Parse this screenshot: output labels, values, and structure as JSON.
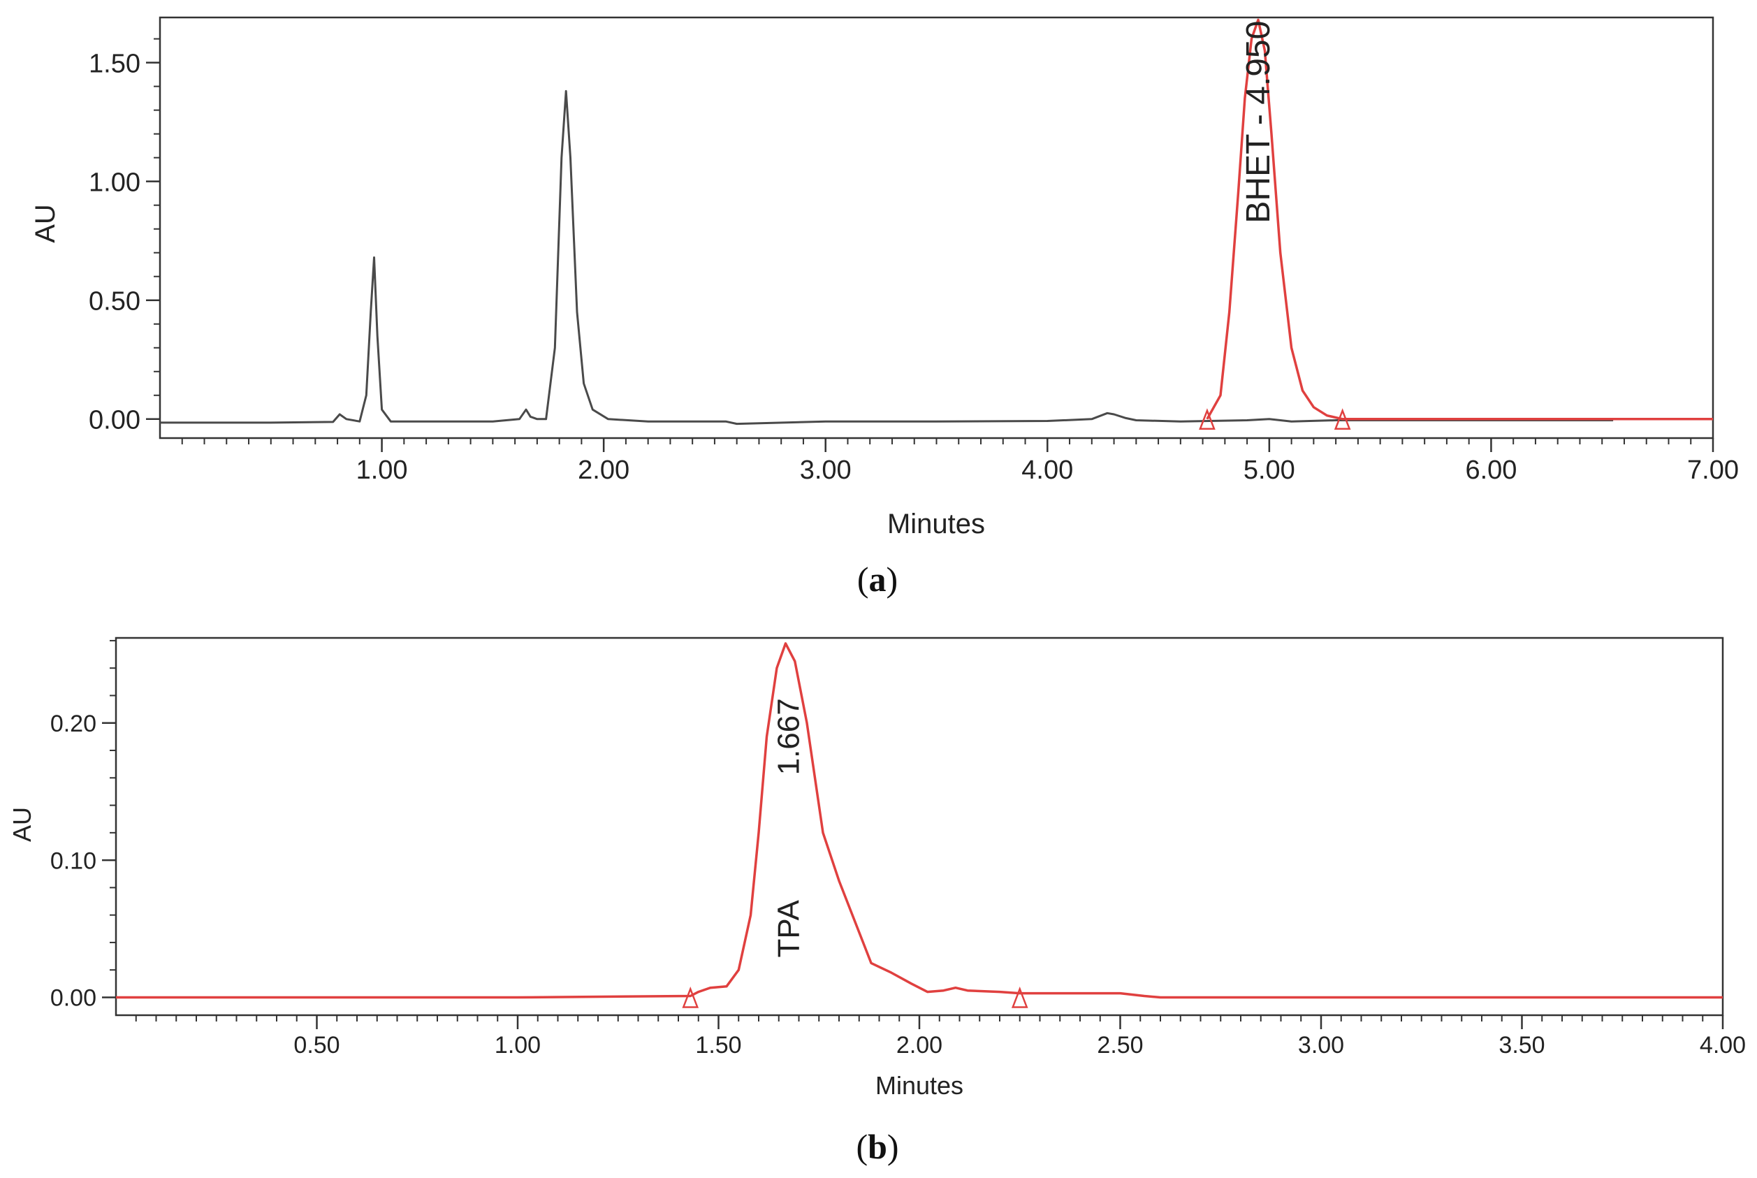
{
  "colors": {
    "trace_black": "#4a4a4a",
    "trace_red": "#e0403f",
    "axis": "#333333",
    "text": "#222222"
  },
  "chart_data": [
    {
      "type": "line",
      "panel_label": "a",
      "xlabel": "Minutes",
      "ylabel": "AU",
      "xlim": [
        0,
        7
      ],
      "ylim": [
        -0.08,
        1.69
      ],
      "x_ticks": [
        1,
        2,
        3,
        4,
        5,
        6,
        7
      ],
      "x_tick_labels": [
        "1.00",
        "2.00",
        "3.00",
        "4.00",
        "5.00",
        "6.00",
        "7.00"
      ],
      "y_ticks": [
        0,
        0.5,
        1.0,
        1.5
      ],
      "y_tick_labels": [
        "0.00",
        "0.50",
        "1.00",
        "1.50"
      ],
      "grid": false,
      "series": [
        {
          "color": "black",
          "x": [
            0.0,
            0.5,
            0.78,
            0.81,
            0.84,
            0.9,
            0.93,
            0.95,
            0.965,
            0.98,
            1.0,
            1.04,
            1.2,
            1.5,
            1.62,
            1.65,
            1.67,
            1.7,
            1.74,
            1.78,
            1.81,
            1.83,
            1.85,
            1.88,
            1.91,
            1.95,
            2.02,
            2.2,
            2.55,
            2.6,
            3.0,
            3.5,
            4.0,
            4.2,
            4.27,
            4.3,
            4.35,
            4.4,
            4.6,
            4.9,
            5.0,
            5.1,
            5.3,
            6.0,
            6.55
          ],
          "y": [
            -0.015,
            -0.015,
            -0.012,
            0.02,
            0.0,
            -0.01,
            0.1,
            0.45,
            0.68,
            0.35,
            0.04,
            -0.01,
            -0.01,
            -0.01,
            0.0,
            0.04,
            0.01,
            0.0,
            0.0,
            0.3,
            1.1,
            1.38,
            1.1,
            0.45,
            0.15,
            0.04,
            0.0,
            -0.01,
            -0.01,
            -0.02,
            -0.01,
            -0.01,
            -0.008,
            0.0,
            0.025,
            0.02,
            0.005,
            -0.005,
            -0.01,
            -0.005,
            0.0,
            -0.01,
            -0.005,
            -0.005,
            -0.005
          ]
        },
        {
          "color": "red",
          "x": [
            4.72,
            4.78,
            4.82,
            4.86,
            4.89,
            4.92,
            4.95,
            4.98,
            5.01,
            5.05,
            5.1,
            5.15,
            5.2,
            5.26,
            5.33,
            5.5,
            6.0,
            7.0
          ],
          "y": [
            0.0,
            0.1,
            0.45,
            0.95,
            1.35,
            1.6,
            1.68,
            1.55,
            1.2,
            0.7,
            0.3,
            0.12,
            0.05,
            0.015,
            0.0,
            0.0,
            0.0,
            0.0
          ]
        }
      ],
      "integration_markers_x": [
        4.72,
        5.33
      ],
      "peak_labels": [
        {
          "text": "BHET - 4.950",
          "x": 5.0,
          "y": 1.25
        }
      ]
    },
    {
      "type": "line",
      "panel_label": "b",
      "xlabel": "Minutes",
      "ylabel": "AU",
      "xlim": [
        0,
        4
      ],
      "ylim": [
        -0.013,
        0.262
      ],
      "x_ticks": [
        0.5,
        1.0,
        1.5,
        2.0,
        2.5,
        3.0,
        3.5,
        4.0
      ],
      "x_tick_labels": [
        "0.50",
        "1.00",
        "1.50",
        "2.00",
        "2.50",
        "3.00",
        "3.50",
        "4.00"
      ],
      "y_ticks": [
        0,
        0.1,
        0.2
      ],
      "y_tick_labels": [
        "0.00",
        "0.10",
        "0.20"
      ],
      "grid": false,
      "series": [
        {
          "color": "red",
          "x": [
            0.0,
            1.0,
            1.43,
            1.45,
            1.48,
            1.52,
            1.55,
            1.58,
            1.6,
            1.62,
            1.645,
            1.667,
            1.69,
            1.72,
            1.76,
            1.8,
            1.84,
            1.88,
            1.93,
            1.98,
            2.02,
            2.06,
            2.09,
            2.12,
            2.2,
            2.25,
            2.3,
            2.5,
            2.56,
            2.6,
            3.0,
            4.0
          ],
          "y": [
            0.0,
            0.0,
            0.001,
            0.004,
            0.007,
            0.008,
            0.02,
            0.06,
            0.12,
            0.19,
            0.24,
            0.258,
            0.245,
            0.2,
            0.12,
            0.085,
            0.055,
            0.025,
            0.018,
            0.01,
            0.004,
            0.005,
            0.007,
            0.005,
            0.004,
            0.003,
            0.003,
            0.003,
            0.001,
            0.0,
            0.0,
            0.0
          ]
        }
      ],
      "integration_markers_x": [
        1.43,
        2.25
      ],
      "peak_labels": [
        {
          "text": "1.667",
          "x": 1.7,
          "y": 0.19
        },
        {
          "text": "TPA",
          "x": 1.7,
          "y": 0.05
        }
      ]
    }
  ]
}
